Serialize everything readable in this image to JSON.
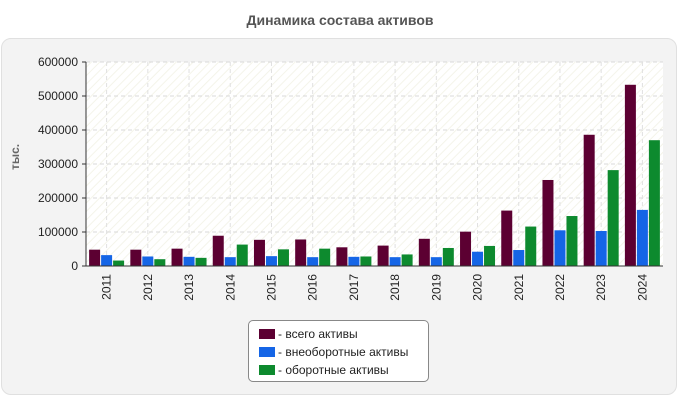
{
  "title": "Динамика состава активов",
  "chart_data": {
    "type": "bar",
    "title": "Динамика состава активов",
    "xlabel": "",
    "ylabel": "тыс.",
    "ylim": [
      0,
      600000
    ],
    "yticks": [
      "0",
      "100000",
      "200000",
      "300000",
      "400000",
      "500000",
      "600000"
    ],
    "categories": [
      "2011",
      "2012",
      "2013",
      "2014",
      "2015",
      "2016",
      "2017",
      "2018",
      "2019",
      "2020",
      "2021",
      "2022",
      "2023",
      "2024"
    ],
    "series": [
      {
        "name": "всего активы",
        "color": "#5c0032",
        "values": [
          48000,
          48000,
          51000,
          89000,
          77000,
          78000,
          55000,
          60000,
          80000,
          101000,
          163000,
          253000,
          386000,
          533000
        ]
      },
      {
        "name": "внеоборотные активы",
        "color": "#1565e6",
        "values": [
          32000,
          28000,
          27000,
          26000,
          29000,
          26000,
          27000,
          26000,
          26000,
          42000,
          47000,
          105000,
          103000,
          165000
        ]
      },
      {
        "name": "оборотные активы",
        "color": "#0d8a2e",
        "values": [
          16000,
          20000,
          24000,
          63000,
          49000,
          51000,
          28000,
          34000,
          53000,
          59000,
          116000,
          147000,
          282000,
          370000
        ]
      }
    ],
    "grid": true,
    "legend_position": "bottom-center"
  },
  "legend": {
    "items": [
      {
        "label": "- всего активы",
        "color": "#5c0032"
      },
      {
        "label": "- внеоборотные активы",
        "color": "#1565e6"
      },
      {
        "label": "- оборотные активы",
        "color": "#0d8a2e"
      }
    ]
  }
}
